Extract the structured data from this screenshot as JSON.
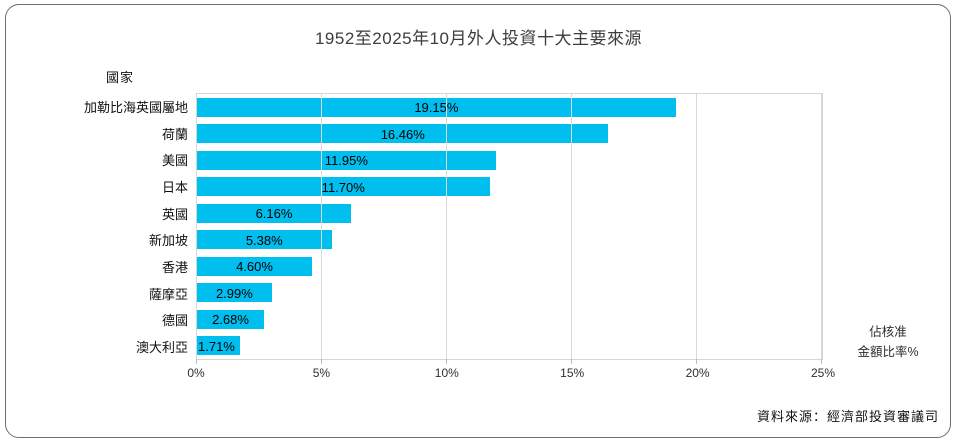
{
  "window": {
    "background": "#ffffff",
    "border_color": "#6e6e6e"
  },
  "chart_data": {
    "type": "bar",
    "orientation": "horizontal",
    "title": "1952至2025年10月外人投資十大主要來源",
    "category_axis_title": "國家",
    "value_axis_title_line1": "佔核准",
    "value_axis_title_line2": "金額比率%",
    "categories": [
      "加勒比海英國屬地",
      "荷蘭",
      "美國",
      "日本",
      "英國",
      "新加坡",
      "香港",
      "薩摩亞",
      "德國",
      "澳大利亞"
    ],
    "values": [
      19.15,
      16.46,
      11.95,
      11.7,
      6.16,
      5.38,
      4.6,
      2.99,
      2.68,
      1.71
    ],
    "data_labels": [
      "19.15%",
      "16.46%",
      "11.95%",
      "11.70%",
      "6.16%",
      "5.38%",
      "4.60%",
      "2.99%",
      "2.68%",
      "1.71%"
    ],
    "xlim": [
      0,
      25
    ],
    "x_ticks": [
      "0%",
      "5%",
      "10%",
      "15%",
      "20%",
      "25%"
    ],
    "bar_color": "#00beee",
    "gridline_color": "#d9d9d9",
    "grid": true,
    "legend": false
  },
  "source": "資料來源：經濟部投資審議司"
}
